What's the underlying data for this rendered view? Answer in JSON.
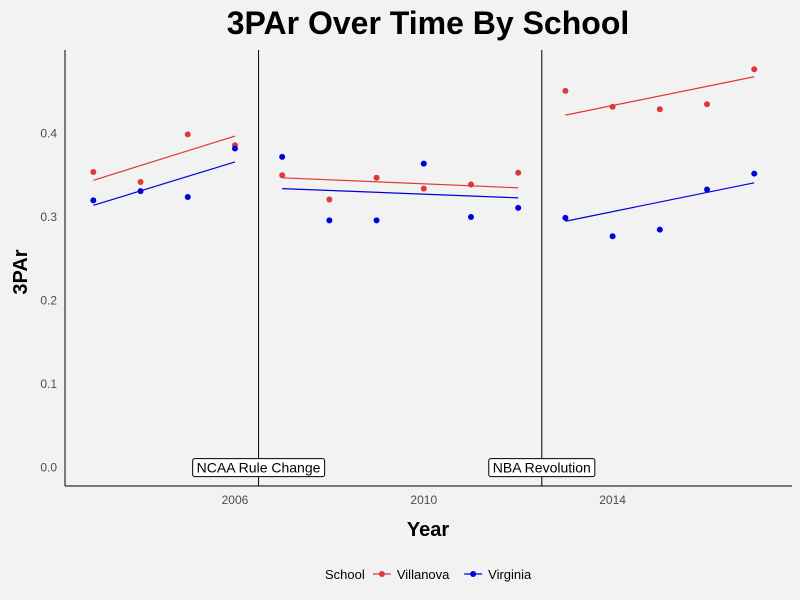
{
  "chart_data": {
    "type": "scatter",
    "title": "3PAr Over Time By School",
    "xlabel": "Year",
    "ylabel": "3PAr",
    "xlim": [
      2002.4,
      2017.8
    ],
    "ylim": [
      -0.022,
      0.5
    ],
    "x_ticks": [
      {
        "value": 2006,
        "label": "2006"
      },
      {
        "value": 2010,
        "label": "2010"
      },
      {
        "value": 2014,
        "label": "2014"
      }
    ],
    "y_ticks": [
      {
        "value": 0.0,
        "label": "0.0"
      },
      {
        "value": 0.1,
        "label": "0.1"
      },
      {
        "value": 0.2,
        "label": "0.2"
      },
      {
        "value": 0.3,
        "label": "0.3"
      },
      {
        "value": 0.4,
        "label": "0.4"
      }
    ],
    "grid": false,
    "legend": {
      "title": "School",
      "position": "bottom"
    },
    "series": [
      {
        "name": "Villanova",
        "color": "#e03838",
        "points": [
          {
            "x": 2003,
            "y": 0.354
          },
          {
            "x": 2004,
            "y": 0.342
          },
          {
            "x": 2005,
            "y": 0.399
          },
          {
            "x": 2006,
            "y": 0.386
          },
          {
            "x": 2007,
            "y": 0.35
          },
          {
            "x": 2008,
            "y": 0.321
          },
          {
            "x": 2009,
            "y": 0.347
          },
          {
            "x": 2010,
            "y": 0.334
          },
          {
            "x": 2011,
            "y": 0.339
          },
          {
            "x": 2012,
            "y": 0.353
          },
          {
            "x": 2013,
            "y": 0.451
          },
          {
            "x": 2014,
            "y": 0.432
          },
          {
            "x": 2015,
            "y": 0.429
          },
          {
            "x": 2016,
            "y": 0.435
          },
          {
            "x": 2017,
            "y": 0.477
          }
        ],
        "trend_lines": [
          {
            "x": [
              2003,
              2006
            ],
            "y": [
              0.344,
              0.397
            ]
          },
          {
            "x": [
              2007,
              2012
            ],
            "y": [
              0.347,
              0.335
            ]
          },
          {
            "x": [
              2013,
              2017
            ],
            "y": [
              0.422,
              0.468
            ]
          }
        ]
      },
      {
        "name": "Virginia",
        "color": "#0000dd",
        "points": [
          {
            "x": 2003,
            "y": 0.32
          },
          {
            "x": 2004,
            "y": 0.331
          },
          {
            "x": 2005,
            "y": 0.324
          },
          {
            "x": 2006,
            "y": 0.382
          },
          {
            "x": 2007,
            "y": 0.372
          },
          {
            "x": 2008,
            "y": 0.296
          },
          {
            "x": 2009,
            "y": 0.296
          },
          {
            "x": 2010,
            "y": 0.364
          },
          {
            "x": 2011,
            "y": 0.3
          },
          {
            "x": 2012,
            "y": 0.311
          },
          {
            "x": 2013,
            "y": 0.299
          },
          {
            "x": 2014,
            "y": 0.277
          },
          {
            "x": 2015,
            "y": 0.285
          },
          {
            "x": 2016,
            "y": 0.333
          },
          {
            "x": 2017,
            "y": 0.352
          }
        ],
        "trend_lines": [
          {
            "x": [
              2003,
              2006
            ],
            "y": [
              0.314,
              0.366
            ]
          },
          {
            "x": [
              2007,
              2012
            ],
            "y": [
              0.334,
              0.323
            ]
          },
          {
            "x": [
              2013,
              2017
            ],
            "y": [
              0.295,
              0.341
            ]
          }
        ]
      }
    ],
    "vertical_lines": [
      {
        "x": 2006.5
      },
      {
        "x": 2012.5
      }
    ],
    "annotations": [
      {
        "text": "NCAA Rule Change",
        "x": 2006.5,
        "y": 0.0
      },
      {
        "text": "NBA Revolution",
        "x": 2012.5,
        "y": 0.0
      }
    ]
  }
}
